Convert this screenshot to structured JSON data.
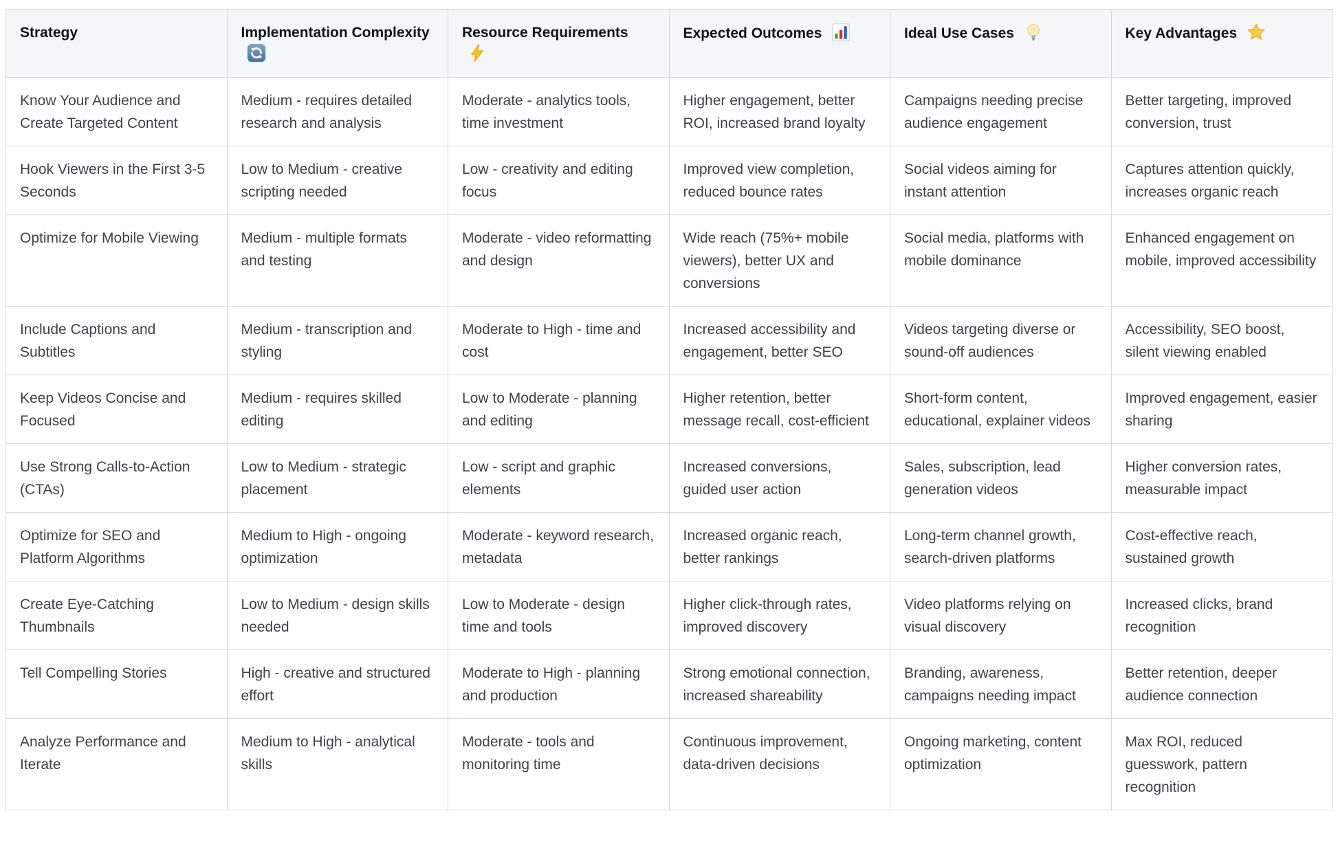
{
  "page": {
    "background_color": "#ffffff"
  },
  "table": {
    "style": {
      "border_color": "#d4d9de",
      "header_background": "#f4f6f8",
      "header_text_color": "#111418",
      "body_text_color": "#3d4349",
      "row_background": "#ffffff"
    },
    "columns": [
      {
        "label": "Strategy",
        "icon": null
      },
      {
        "label": "Implementation Complexity",
        "icon": "cycle-arrows-icon",
        "icon_colors": {
          "tile": "#5d87b4",
          "glyph": "#ffffff"
        }
      },
      {
        "label": "Resource Requirements",
        "icon": "lightning-bolt-icon",
        "icon_colors": {
          "bolt": "#fbc02d",
          "edge": "#f59f00"
        }
      },
      {
        "label": "Expected Outcomes",
        "icon": "bar-chart-icon",
        "icon_colors": {
          "bar1": "#34a853",
          "bar2": "#d93025",
          "bar3": "#1a63d8"
        }
      },
      {
        "label": "Ideal Use Cases",
        "icon": "light-bulb-icon",
        "icon_colors": {
          "bulb": "#ffe9a8",
          "base": "#a7adb5"
        }
      },
      {
        "label": "Key Advantages",
        "icon": "star-icon",
        "icon_colors": {
          "star": "#f8ce46",
          "edge": "#e8a828"
        }
      }
    ],
    "rows": [
      [
        "Know Your Audience and Create Targeted Content",
        "Medium - requires detailed research and analysis",
        "Moderate - analytics tools, time investment",
        "Higher engagement, better ROI, increased brand loyalty",
        "Campaigns needing precise audience engagement",
        "Better targeting, improved conversion, trust"
      ],
      [
        "Hook Viewers in the First 3-5 Seconds",
        "Low to Medium - creative scripting needed",
        "Low - creativity and editing focus",
        "Improved view completion, reduced bounce rates",
        "Social videos aiming for instant attention",
        "Captures attention quickly, increases organic reach"
      ],
      [
        "Optimize for Mobile Viewing",
        "Medium - multiple formats and testing",
        "Moderate - video reformatting and design",
        "Wide reach (75%+ mobile viewers), better UX and conversions",
        "Social media, platforms with mobile dominance",
        "Enhanced engagement on mobile, improved accessibility"
      ],
      [
        "Include Captions and Subtitles",
        "Medium - transcription and styling",
        "Moderate to High - time and cost",
        "Increased accessibility and engagement, better SEO",
        "Videos targeting diverse or sound-off audiences",
        "Accessibility, SEO boost, silent viewing enabled"
      ],
      [
        "Keep Videos Concise and Focused",
        "Medium - requires skilled editing",
        "Low to Moderate - planning and editing",
        "Higher retention, better message recall, cost-efficient",
        "Short-form content, educational, explainer videos",
        "Improved engagement, easier sharing"
      ],
      [
        "Use Strong Calls-to-Action (CTAs)",
        "Low to Medium - strategic placement",
        "Low - script and graphic elements",
        "Increased conversions, guided user action",
        "Sales, subscription, lead generation videos",
        "Higher conversion rates, measurable impact"
      ],
      [
        "Optimize for SEO and Platform Algorithms",
        "Medium to High - ongoing optimization",
        "Moderate - keyword research, metadata",
        "Increased organic reach, better rankings",
        "Long-term channel growth, search-driven platforms",
        "Cost-effective reach, sustained growth"
      ],
      [
        "Create Eye-Catching Thumbnails",
        "Low to Medium - design skills needed",
        "Low to Moderate - design time and tools",
        "Higher click-through rates, improved discovery",
        "Video platforms relying on visual discovery",
        "Increased clicks, brand recognition"
      ],
      [
        "Tell Compelling Stories",
        "High - creative and structured effort",
        "Moderate to High - planning and production",
        "Strong emotional connection, increased shareability",
        "Branding, awareness, campaigns needing impact",
        "Better retention, deeper audience connection"
      ],
      [
        "Analyze Performance and Iterate",
        "Medium to High - analytical skills",
        "Moderate - tools and monitoring time",
        "Continuous improvement, data-driven decisions",
        "Ongoing marketing, content optimization",
        "Max ROI, reduced guesswork, pattern recognition"
      ]
    ]
  }
}
